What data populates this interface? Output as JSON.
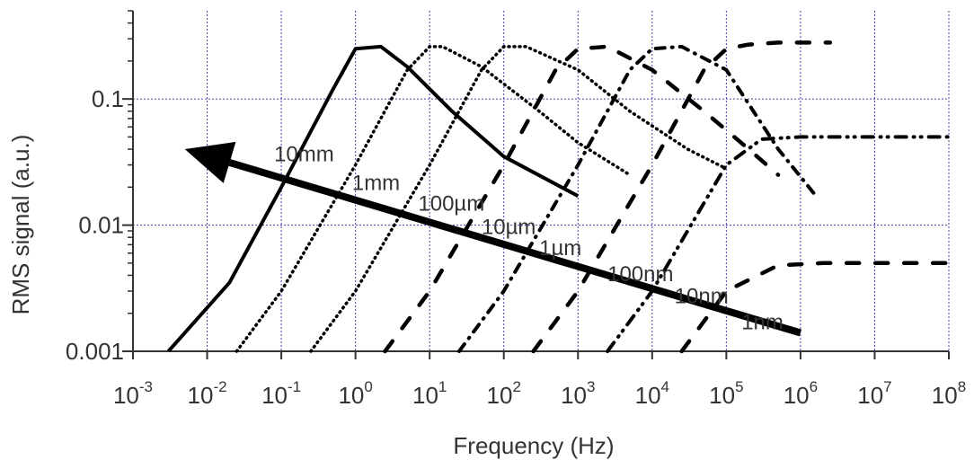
{
  "chart_data": {
    "type": "line",
    "title": "",
    "xlabel": "Frequency (Hz)",
    "ylabel": "RMS signal (a.u.)",
    "x_scale": "log",
    "y_scale": "log",
    "xlim": [
      0.001,
      100000000
    ],
    "ylim": [
      0.001,
      0.5
    ],
    "grid": true,
    "grid_color": "#4040b0",
    "x_ticks": [
      {
        "base": "10",
        "exp": "-3"
      },
      {
        "base": "10",
        "exp": "-2"
      },
      {
        "base": "10",
        "exp": "-1"
      },
      {
        "base": "10",
        "exp": "0"
      },
      {
        "base": "10",
        "exp": "1"
      },
      {
        "base": "10",
        "exp": "2"
      },
      {
        "base": "10",
        "exp": "3"
      },
      {
        "base": "10",
        "exp": "4"
      },
      {
        "base": "10",
        "exp": "5"
      },
      {
        "base": "10",
        "exp": "6"
      },
      {
        "base": "10",
        "exp": "7"
      },
      {
        "base": "10",
        "exp": "8"
      }
    ],
    "y_ticks": [
      {
        "value": 0.001,
        "label": "0.001"
      },
      {
        "value": 0.01,
        "label": "0.01"
      },
      {
        "value": 0.1,
        "label": "0.1"
      }
    ],
    "series": [
      {
        "name": "10mm",
        "style": "solid",
        "color": "#000000",
        "points": [
          [
            0.003,
            0.001
          ],
          [
            0.02,
            0.0035
          ],
          [
            0.1,
            0.02
          ],
          [
            0.5,
            0.12
          ],
          [
            1,
            0.25
          ],
          [
            2.2,
            0.26
          ],
          [
            5,
            0.18
          ],
          [
            20,
            0.08
          ],
          [
            100,
            0.035
          ],
          [
            1000,
            0.017
          ]
        ]
      },
      {
        "name": "1mm",
        "style": "dotted",
        "color": "#000000",
        "points": [
          [
            0.025,
            0.001
          ],
          [
            0.1,
            0.003
          ],
          [
            1,
            0.03
          ],
          [
            5,
            0.17
          ],
          [
            10,
            0.26
          ],
          [
            15,
            0.26
          ],
          [
            50,
            0.18
          ],
          [
            300,
            0.08
          ],
          [
            1000,
            0.045
          ],
          [
            5000,
            0.025
          ]
        ]
      },
      {
        "name": "100µm",
        "style": "dotted",
        "color": "#000000",
        "points": [
          [
            0.25,
            0.001
          ],
          [
            1,
            0.003
          ],
          [
            10,
            0.03
          ],
          [
            50,
            0.17
          ],
          [
            100,
            0.26
          ],
          [
            200,
            0.26
          ],
          [
            1000,
            0.17
          ],
          [
            5000,
            0.08
          ],
          [
            30000,
            0.04
          ],
          [
            100000,
            0.028
          ]
        ]
      },
      {
        "name": "10µm",
        "style": "dashed",
        "color": "#000000",
        "points": [
          [
            2.5,
            0.001
          ],
          [
            10,
            0.003
          ],
          [
            100,
            0.03
          ],
          [
            500,
            0.17
          ],
          [
            1000,
            0.25
          ],
          [
            2500,
            0.26
          ],
          [
            10000,
            0.17
          ],
          [
            50000,
            0.08
          ],
          [
            200000,
            0.04
          ],
          [
            500000,
            0.025
          ]
        ]
      },
      {
        "name": "1µm",
        "style": "dashdot",
        "color": "#000000",
        "points": [
          [
            25,
            0.001
          ],
          [
            100,
            0.003
          ],
          [
            1000,
            0.03
          ],
          [
            5000,
            0.17
          ],
          [
            10000,
            0.25
          ],
          [
            25000,
            0.26
          ],
          [
            100000,
            0.17
          ],
          [
            500000,
            0.04
          ],
          [
            1500000,
            0.018
          ]
        ]
      },
      {
        "name": "100nm",
        "style": "dashed",
        "color": "#000000",
        "points": [
          [
            250,
            0.001
          ],
          [
            1000,
            0.003
          ],
          [
            10000,
            0.03
          ],
          [
            50000,
            0.17
          ],
          [
            100000,
            0.25
          ],
          [
            200000,
            0.27
          ],
          [
            500000,
            0.28
          ],
          [
            2500000,
            0.28
          ]
        ]
      },
      {
        "name": "10nm",
        "style": "dashdotdot",
        "color": "#000000",
        "points": [
          [
            2500,
            0.001
          ],
          [
            10000,
            0.003
          ],
          [
            100000,
            0.03
          ],
          [
            300000,
            0.048
          ],
          [
            1000000,
            0.05
          ],
          [
            5000000,
            0.05
          ],
          [
            100000000,
            0.05
          ]
        ]
      },
      {
        "name": "1nm",
        "style": "dashed",
        "color": "#000000",
        "points": [
          [
            25000,
            0.001
          ],
          [
            100000,
            0.003
          ],
          [
            500000,
            0.0048
          ],
          [
            2000000,
            0.005
          ],
          [
            100000000,
            0.005
          ]
        ]
      }
    ],
    "annotations": {
      "arrow": {
        "from": [
          1000000,
          0.0014
        ],
        "to": [
          0.005,
          0.04
        ],
        "color": "#000000"
      },
      "labels": [
        {
          "text": "10mm",
          "at": [
            0.08,
            0.032
          ]
        },
        {
          "text": "1mm",
          "at": [
            0.9,
            0.019
          ]
        },
        {
          "text": "100µm",
          "at": [
            7,
            0.013
          ]
        },
        {
          "text": "10µm",
          "at": [
            50,
            0.0085
          ]
        },
        {
          "text": "1µm",
          "at": [
            300,
            0.0058
          ]
        },
        {
          "text": "100nm",
          "at": [
            2500,
            0.0036
          ]
        },
        {
          "text": "10nm",
          "at": [
            20000,
            0.0024
          ]
        },
        {
          "text": "1nm",
          "at": [
            160000,
            0.0015
          ]
        }
      ]
    }
  }
}
